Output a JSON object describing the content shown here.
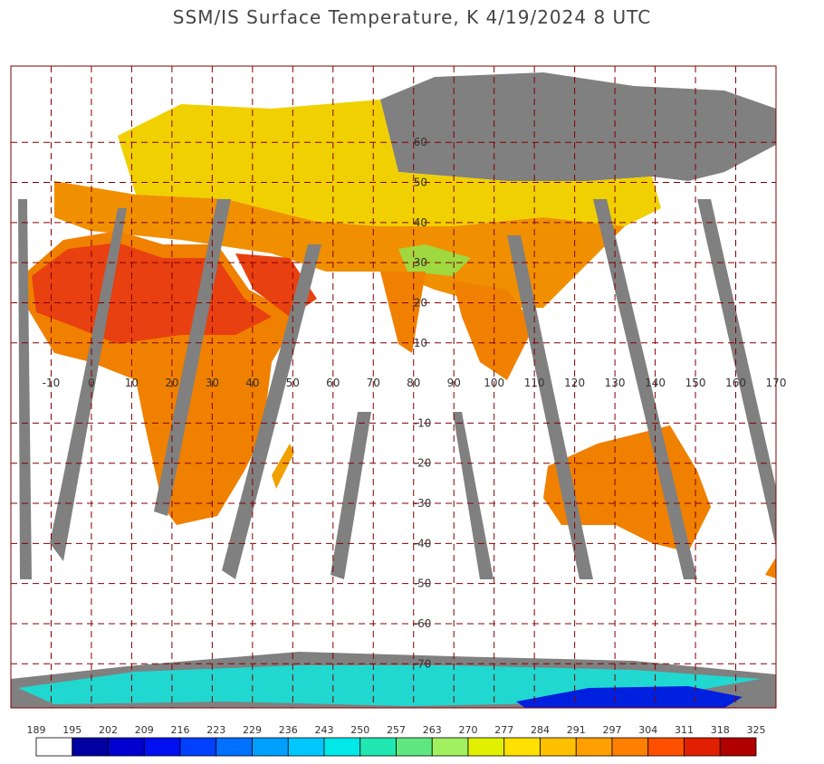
{
  "title": "SSM/IS Surface Temperature, K 4/19/2024 8 UTC",
  "map": {
    "lonlim": [
      -20,
      170
    ],
    "latlim": [
      -81,
      79
    ],
    "lon_ticks": [
      -10,
      0,
      10,
      20,
      30,
      40,
      50,
      60,
      70,
      80,
      90,
      100,
      110,
      120,
      130,
      140,
      150,
      160,
      170
    ],
    "lat_ticks": [
      60,
      50,
      40,
      30,
      20,
      10,
      -10,
      -20,
      -30,
      -40,
      -50,
      -60,
      -70
    ]
  },
  "colorbar": {
    "labels": [
      189,
      195,
      202,
      209,
      216,
      223,
      229,
      236,
      243,
      250,
      257,
      263,
      270,
      277,
      284,
      291,
      297,
      304,
      311,
      318,
      325
    ],
    "colors": [
      "#ffffff",
      "#0000a0",
      "#0000d0",
      "#0010f0",
      "#0040ff",
      "#0070ff",
      "#00a0ff",
      "#00c8ff",
      "#00e8e8",
      "#20e8b0",
      "#60e880",
      "#a0f060",
      "#e0f000",
      "#ffe000",
      "#ffc000",
      "#ffa000",
      "#ff8000",
      "#ff5000",
      "#e02000",
      "#b00000"
    ]
  }
}
